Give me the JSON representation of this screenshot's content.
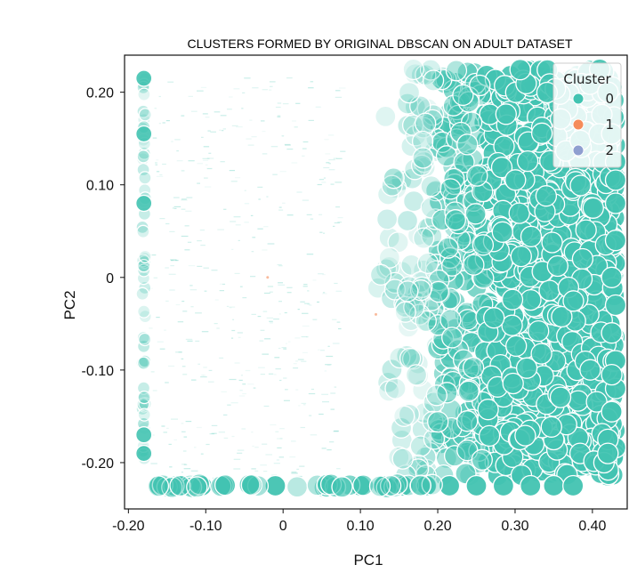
{
  "chart_data": {
    "type": "scatter",
    "title": "CLUSTERS FORMED BY ORIGINAL DBSCAN ON ADULT DATASET",
    "xlabel": "PC1",
    "ylabel": "PC2",
    "xlim": [
      -0.205,
      0.445
    ],
    "ylim": [
      -0.25,
      0.24
    ],
    "x_ticks": [
      {
        "value": -0.2,
        "label": "-0.20"
      },
      {
        "value": -0.1,
        "label": "-0.10"
      },
      {
        "value": 0,
        "label": "0"
      },
      {
        "value": 0.1,
        "label": "0.10"
      },
      {
        "value": 0.2,
        "label": "0.20"
      },
      {
        "value": 0.3,
        "label": "0.30"
      },
      {
        "value": 0.4,
        "label": "0.40"
      }
    ],
    "y_ticks": [
      {
        "value": 0.2,
        "label": "0.20"
      },
      {
        "value": 0.1,
        "label": "0.10"
      },
      {
        "value": 0,
        "label": "0"
      },
      {
        "value": -0.1,
        "label": "-0.10"
      },
      {
        "value": -0.2,
        "label": "-0.20"
      }
    ],
    "grid": false,
    "legend": {
      "title": "Cluster",
      "placement": "top-right",
      "entries": [
        {
          "label": "0",
          "color": "#42c3b1"
        },
        {
          "label": "1",
          "color": "#f58c5a"
        },
        {
          "label": "2",
          "color": "#8f9fd0"
        }
      ]
    },
    "series": [
      {
        "name": "0",
        "color": "#42c3b1",
        "description_points": {
          "bottom_row_y": -0.225,
          "bottom_row_x": [
            -0.16,
            -0.13,
            -0.105,
            -0.075,
            -0.04,
            -0.01,
            0.06,
            0.1,
            0.13,
            0.155,
            0.185,
            0.215,
            0.25,
            0.285,
            0.32,
            0.35,
            0.375
          ],
          "left_edge_x": -0.18,
          "left_edge_y": [
            0.215,
            0.155,
            0.08,
            -0.17,
            -0.19
          ],
          "right_edge_x": [
            0.42,
            0.425,
            0.43,
            0.43,
            0.43,
            0.425,
            0.43,
            0.425,
            0.43,
            0.43,
            0.425,
            0.42,
            0.415,
            0.43,
            0.425,
            0.42
          ],
          "right_edge_y": [
            0.2,
            0.155,
            0.125,
            0.08,
            0.04,
            0.0,
            -0.03,
            -0.06,
            -0.09,
            -0.12,
            -0.145,
            -0.175,
            -0.2,
            0.105,
            -0.105,
            -0.19
          ]
        }
      },
      {
        "name": "1",
        "color": "#f58c5a",
        "points": [
          [
            -0.02,
            0.0
          ],
          [
            0.12,
            -0.04
          ]
        ]
      },
      {
        "name": "2",
        "color": "#8f9fd0",
        "points": []
      }
    ]
  }
}
